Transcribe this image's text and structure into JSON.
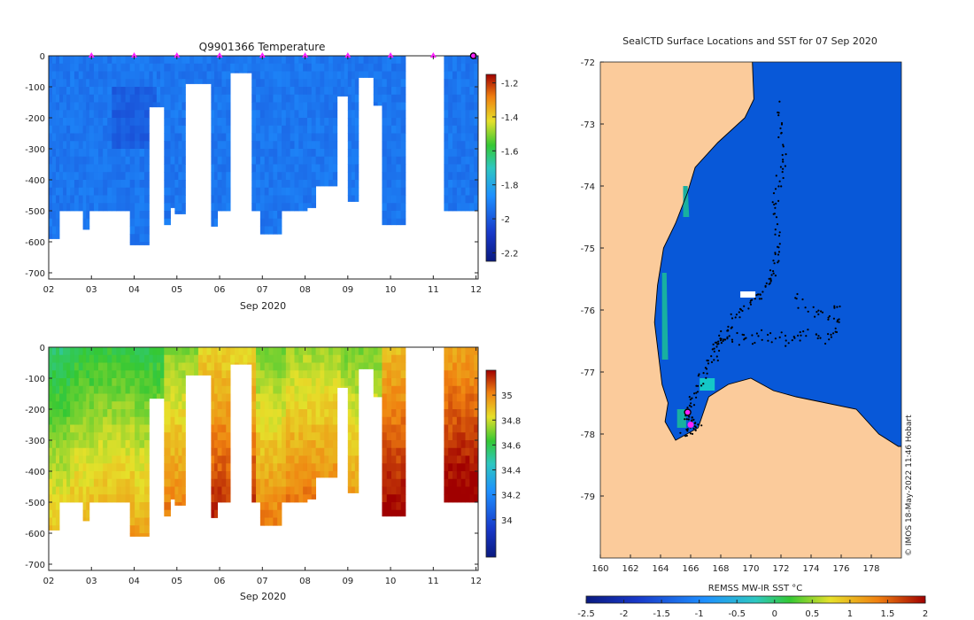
{
  "figure": {
    "stamp": "© IMOS 18-May-2022 11:46 Hobart"
  },
  "chart_data": [
    {
      "type": "heatmap",
      "title": "Q9901366  Temperature",
      "xlabel": "Sep 2020",
      "ylabel": "",
      "xlim": [
        2,
        12.05
      ],
      "ylim": [
        -720,
        0
      ],
      "xticks": [
        "02",
        "03",
        "04",
        "05",
        "06",
        "07",
        "08",
        "09",
        "10",
        "11",
        "12"
      ],
      "yticks": [
        0,
        -100,
        -200,
        -300,
        -400,
        -500,
        -600,
        -700
      ],
      "colorbar": {
        "range": [
          -2.25,
          -1.15
        ],
        "ticks": [
          -1.2,
          -1.4,
          -1.6,
          -1.8,
          -2,
          -2.2
        ]
      },
      "surface_markers_x": [
        3,
        4,
        5,
        6,
        7,
        8,
        9,
        10,
        11
      ],
      "latest_profile_x": 12,
      "profile_depths": [
        [
          2.0,
          2.25,
          590
        ],
        [
          2.25,
          2.5,
          500
        ],
        [
          2.5,
          2.8,
          500
        ],
        [
          2.8,
          2.95,
          560
        ],
        [
          2.95,
          3.9,
          500
        ],
        [
          3.9,
          4.35,
          610
        ],
        [
          4.35,
          4.7,
          165
        ],
        [
          4.7,
          4.85,
          545
        ],
        [
          4.85,
          4.95,
          490
        ],
        [
          4.95,
          5.2,
          510
        ],
        [
          5.2,
          5.8,
          90
        ],
        [
          5.8,
          5.95,
          550
        ],
        [
          5.95,
          6.25,
          500
        ],
        [
          6.25,
          6.75,
          55
        ],
        [
          6.75,
          6.95,
          500
        ],
        [
          6.95,
          7.45,
          575
        ],
        [
          7.45,
          8.05,
          500
        ],
        [
          8.05,
          8.25,
          490
        ],
        [
          8.25,
          8.75,
          420
        ],
        [
          8.75,
          9.0,
          130
        ],
        [
          9.0,
          9.25,
          470
        ],
        [
          9.25,
          9.6,
          70
        ],
        [
          9.6,
          9.8,
          160
        ],
        [
          9.8,
          10.35,
          545
        ],
        [
          10.8,
          11.25,
          0
        ],
        [
          11.25,
          12.05,
          500
        ]
      ]
    },
    {
      "type": "heatmap",
      "title": "",
      "xlabel": "Sep 2020",
      "ylabel": "",
      "xlim": [
        2,
        12.05
      ],
      "ylim": [
        -720,
        0
      ],
      "xticks": [
        "02",
        "03",
        "04",
        "05",
        "06",
        "07",
        "08",
        "09",
        "10",
        "11",
        "12"
      ],
      "yticks": [
        0,
        -100,
        -200,
        -300,
        -400,
        -500,
        -600,
        -700
      ],
      "colorbar": {
        "range": [
          33.7,
          35.2
        ],
        "ticks": [
          35,
          34.8,
          34.6,
          34.4,
          34.2,
          34
        ]
      },
      "salinity_base": [
        [
          2.0,
          2.5,
          34.55
        ],
        [
          2.5,
          3.0,
          34.6
        ],
        [
          3.0,
          4.0,
          34.62
        ],
        [
          4.0,
          4.7,
          34.6
        ],
        [
          4.7,
          5.5,
          34.72
        ],
        [
          5.5,
          6.8,
          34.85
        ],
        [
          6.8,
          7.5,
          34.7
        ],
        [
          7.5,
          8.8,
          34.75
        ],
        [
          8.8,
          9.8,
          34.7
        ],
        [
          9.8,
          10.35,
          34.9
        ],
        [
          11.25,
          12.05,
          34.95
        ]
      ]
    },
    {
      "type": "heatmap",
      "title": "SealCTD Surface Locations and SST for 07 Sep 2020",
      "xlabel": "",
      "ylabel": "",
      "xlim": [
        160,
        180
      ],
      "ylim": [
        -80,
        -72
      ],
      "xticks": [
        160,
        162,
        164,
        166,
        168,
        170,
        172,
        174,
        176,
        178
      ],
      "yticks": [
        -72,
        -73,
        -74,
        -75,
        -76,
        -77,
        -78,
        -79
      ],
      "colorbar": {
        "label": "REMSS MW-IR SST °C",
        "range": [
          -2.5,
          2
        ],
        "ticks": [
          "-2.5",
          "-2",
          "-1.5",
          "-1",
          "-0.5",
          "0",
          "0.5",
          "1",
          "1.5",
          "2"
        ]
      },
      "ocean_sst": -1.8,
      "coast_lon_lat": [
        [
          170.1,
          -72.0
        ],
        [
          170.2,
          -72.6
        ],
        [
          169.6,
          -72.9
        ],
        [
          167.8,
          -73.3
        ],
        [
          166.3,
          -73.7
        ],
        [
          165.8,
          -74.1
        ],
        [
          165.0,
          -74.6
        ],
        [
          164.2,
          -75.0
        ],
        [
          163.8,
          -75.6
        ],
        [
          163.6,
          -76.2
        ],
        [
          163.9,
          -76.8
        ],
        [
          164.1,
          -77.2
        ],
        [
          164.5,
          -77.5
        ],
        [
          164.3,
          -77.8
        ],
        [
          165.0,
          -78.1
        ],
        [
          166.5,
          -77.9
        ],
        [
          167.2,
          -77.4
        ],
        [
          168.5,
          -77.2
        ],
        [
          170.0,
          -77.1
        ],
        [
          171.5,
          -77.3
        ],
        [
          173.0,
          -77.4
        ],
        [
          175.0,
          -77.5
        ],
        [
          177.0,
          -77.6
        ],
        [
          178.5,
          -78.0
        ],
        [
          179.8,
          -78.2
        ],
        [
          180,
          -78.2
        ]
      ],
      "warm_water_lon_lat": [
        [
          [
            164.1,
            -75.4
          ],
          [
            164.4,
            -75.4
          ],
          [
            164.5,
            -76.8
          ],
          [
            164.1,
            -76.8
          ]
        ],
        [
          [
            165.5,
            -74.0
          ],
          [
            165.8,
            -74.0
          ],
          [
            165.9,
            -74.5
          ],
          [
            165.5,
            -74.5
          ]
        ],
        [
          [
            166.6,
            -77.1
          ],
          [
            167.6,
            -77.1
          ],
          [
            167.6,
            -77.3
          ],
          [
            166.6,
            -77.3
          ]
        ],
        [
          [
            165.1,
            -77.6
          ],
          [
            165.7,
            -77.6
          ],
          [
            165.7,
            -77.9
          ],
          [
            165.1,
            -77.9
          ]
        ]
      ],
      "ice_patch_lon_lat": [
        [
          169.3,
          -75.7
        ],
        [
          170.3,
          -75.7
        ],
        [
          170.3,
          -75.8
        ],
        [
          169.3,
          -75.8
        ]
      ],
      "latest_location": [
        165.8,
        -77.65
      ],
      "current_location": [
        166.0,
        -77.85
      ]
    }
  ]
}
